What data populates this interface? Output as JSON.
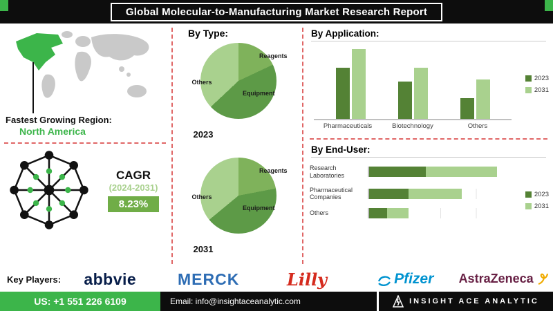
{
  "header": {
    "title": "Global Molecular-to-Manufacturing Market Research Report"
  },
  "left": {
    "fastest_growing_label": "Fastest Growing Region:",
    "region": "North America",
    "cagr": {
      "label": "CAGR",
      "period": "(2024-2031)",
      "value": "8.23%"
    }
  },
  "by_type": {
    "heading": "By Type:"
  },
  "by_application": {
    "heading": "By Application:"
  },
  "by_end_user": {
    "heading": "By End-User:"
  },
  "key_players": {
    "label": "Key Players:",
    "players": [
      {
        "name": "abbvie"
      },
      {
        "name": "MERCK"
      },
      {
        "name": "Lilly"
      },
      {
        "name": "Pfizer"
      },
      {
        "name": "AstraZeneca"
      }
    ]
  },
  "footer": {
    "phone": "US: +1 551 226 6109",
    "email": "Email: info@insightaceanalytic.com",
    "brand": "INSIGHT ACE ANALYTIC"
  },
  "colors": {
    "accent_green": "#3cb54a",
    "medium_green": "#70ad47",
    "dark_green": "#548235",
    "light_green": "#a9d18e",
    "dashed_red": "#e06666",
    "bar_black": "#0d0d0d"
  },
  "chart_data": [
    {
      "id": "pie2023",
      "type": "pie",
      "year": "2023",
      "title": "By Type 2023",
      "slices": [
        {
          "label": "Reagents",
          "value": 18,
          "color": "#7fb25b"
        },
        {
          "label": "Equipment",
          "value": 45,
          "color": "#5d9a47"
        },
        {
          "label": "Others",
          "value": 37,
          "color": "#a9d18e"
        }
      ]
    },
    {
      "id": "pie2031",
      "type": "pie",
      "year": "2031",
      "title": "By Type 2031",
      "slices": [
        {
          "label": "Reagents",
          "value": 22,
          "color": "#7fb25b"
        },
        {
          "label": "Equipment",
          "value": 42,
          "color": "#5d9a47"
        },
        {
          "label": "Others",
          "value": 36,
          "color": "#a9d18e"
        }
      ]
    },
    {
      "id": "application",
      "type": "bar",
      "title": "By Application:",
      "categories": [
        "Pharmaceuticals",
        "Biotechnology",
        "Others"
      ],
      "series": [
        {
          "name": "2023",
          "color": "#548235",
          "values": [
            55,
            40,
            22
          ]
        },
        {
          "name": "2031",
          "color": "#a9d18e",
          "values": [
            75,
            55,
            42
          ]
        }
      ],
      "ylim": [
        0,
        80
      ],
      "legend_position": "right"
    },
    {
      "id": "enduser",
      "type": "hbar",
      "title": "By End-User:",
      "categories": [
        "Research Laboratories",
        "Pharmaceutical Companies",
        "Others"
      ],
      "series": [
        {
          "name": "2023",
          "color": "#548235",
          "values": [
            32,
            22,
            10
          ]
        },
        {
          "name": "2031",
          "color": "#a9d18e",
          "values": [
            72,
            52,
            22
          ]
        }
      ],
      "xlim": [
        0,
        80
      ],
      "legend_position": "right"
    }
  ]
}
